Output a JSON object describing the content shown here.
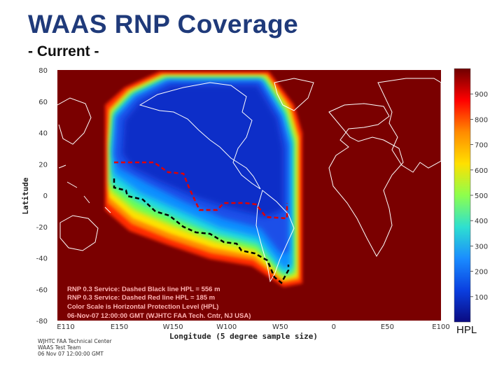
{
  "slide": {
    "title": "WAAS RNP Coverage",
    "subtitle": "- Current -"
  },
  "chart_data": {
    "type": "heatmap",
    "title": "",
    "xlabel": "Longitude (5 degree sample size)",
    "ylabel": "Latitude",
    "x_ticks": [
      "E110",
      "E150",
      "W150",
      "W100",
      "W50",
      "0",
      "E50",
      "E100"
    ],
    "y_ticks": [
      "80",
      "60",
      "40",
      "20",
      "0",
      "-20",
      "-40",
      "-60",
      "-80"
    ],
    "xlim": [
      110,
      470
    ],
    "ylim": [
      -80,
      80
    ],
    "colorbar": {
      "label": "HPL",
      "ticks": [
        900,
        800,
        700,
        600,
        500,
        400,
        300,
        200,
        100
      ],
      "range": [
        0,
        1000
      ],
      "colors": [
        "#6e0000",
        "#ff0000",
        "#ff8a00",
        "#ffe000",
        "#8dff4d",
        "#2ee0d0",
        "#1a8cff",
        "#0a3fe0",
        "#0a0a80"
      ]
    },
    "service_regions": [
      {
        "name": "RNP 0.3 Service: Dashed Black line HPL = 556 m",
        "color": "#000000",
        "threshold_m": 556
      },
      {
        "name": "RNP 0.3 Service: Dashed Red line HPL = 185 m",
        "color": "#e00000",
        "threshold_m": 185
      }
    ],
    "annotations": [
      "RNP 0.3 Service: Dashed Black line HPL = 556 m",
      "RNP 0.3 Service: Dashed Red line HPL = 185 m",
      "Color Scale is Horizontal Protection Level (HPL)",
      "06-Nov-07 12:00:00 GMT (WJHTC FAA Tech. Cntr, NJ USA)"
    ],
    "footer": [
      "WJHTC FAA Technical Center",
      "WAAS Test Team",
      "06 Nov 07 12:00:00 GMT"
    ]
  }
}
